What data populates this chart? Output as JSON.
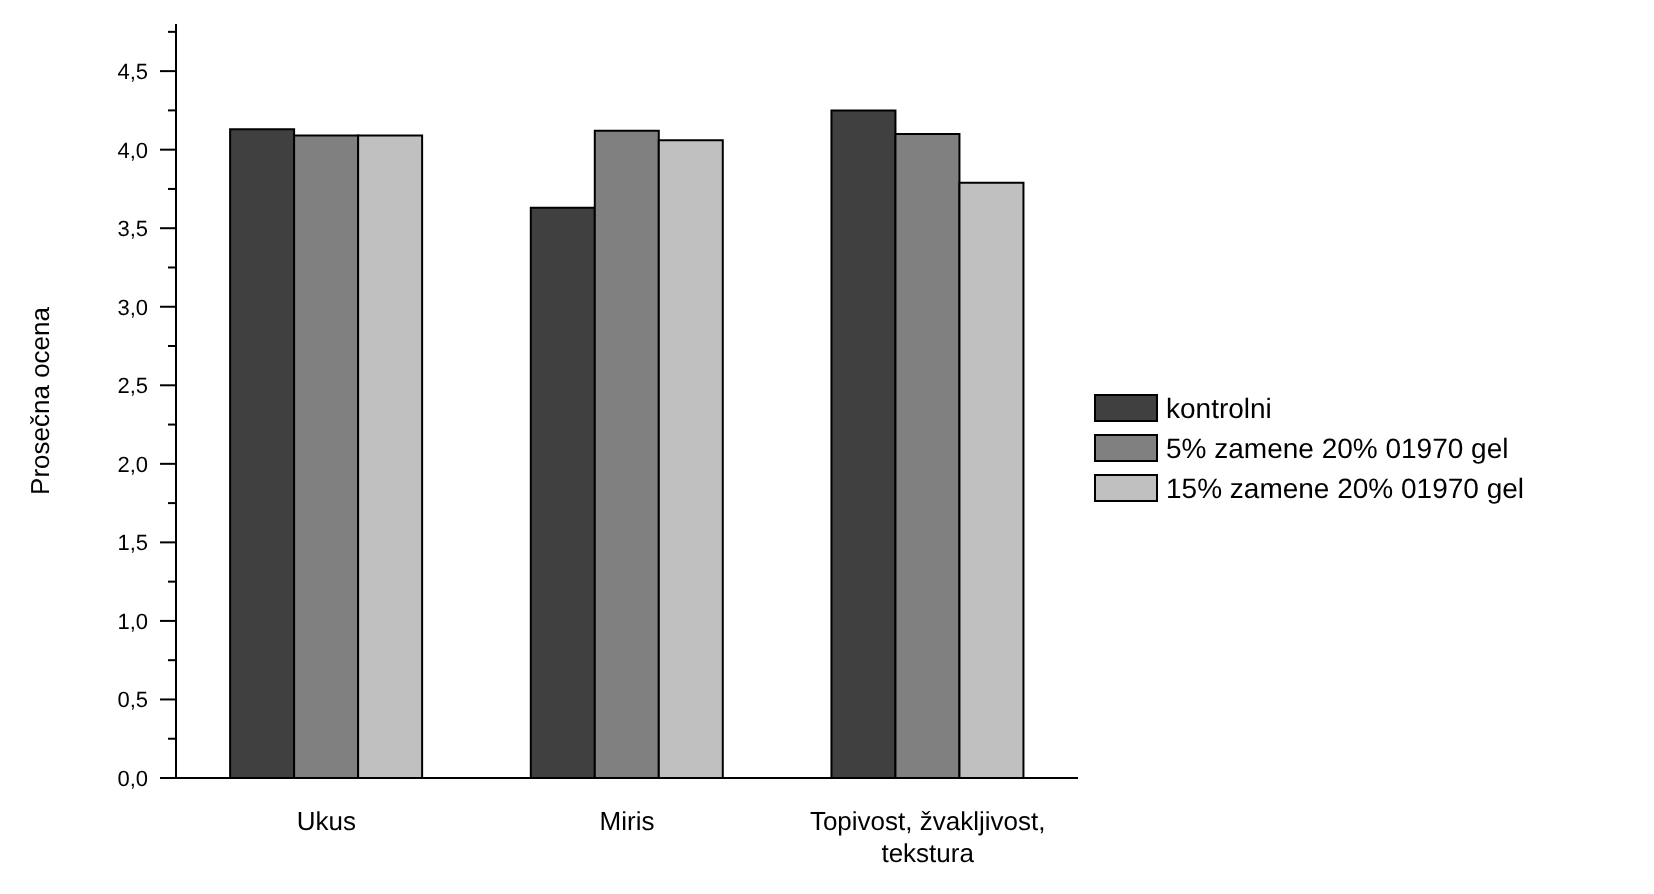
{
  "chart_data": {
    "type": "bar",
    "ylabel": "Prosečna ocena",
    "categories": [
      "Ukus",
      "Miris",
      "Topivost, žvakljivost, tekstura"
    ],
    "series": [
      {
        "name": "kontrolni",
        "color": "#404040",
        "values": [
          4.13,
          3.63,
          4.25
        ]
      },
      {
        "name": "5% zamene 20% 01970 gel",
        "color": "#808080",
        "values": [
          4.09,
          4.12,
          4.1
        ]
      },
      {
        "name": "15% zamene 20% 01970 gel",
        "color": "#c0c0c0",
        "values": [
          4.09,
          4.06,
          3.79
        ]
      }
    ],
    "ylim": [
      0,
      4.8
    ],
    "yticks": [
      {
        "value": 0,
        "label": "0,0"
      },
      {
        "value": 0.25,
        "label": null
      },
      {
        "value": 0.5,
        "label": "0,5"
      },
      {
        "value": 0.75,
        "label": null
      },
      {
        "value": 1,
        "label": "1,0"
      },
      {
        "value": 1.25,
        "label": null
      },
      {
        "value": 1.5,
        "label": "1,5"
      },
      {
        "value": 1.75,
        "label": null
      },
      {
        "value": 2,
        "label": "2,0"
      },
      {
        "value": 2.25,
        "label": null
      },
      {
        "value": 2.5,
        "label": "2,5"
      },
      {
        "value": 2.75,
        "label": null
      },
      {
        "value": 3,
        "label": "3,0"
      },
      {
        "value": 3.25,
        "label": null
      },
      {
        "value": 3.5,
        "label": "3,5"
      },
      {
        "value": 3.75,
        "label": null
      },
      {
        "value": 4,
        "label": "4,0"
      },
      {
        "value": 4.25,
        "label": null
      },
      {
        "value": 4.5,
        "label": "4,5"
      },
      {
        "value": 4.75,
        "label": null
      }
    ],
    "grid": false,
    "legend": "right"
  }
}
